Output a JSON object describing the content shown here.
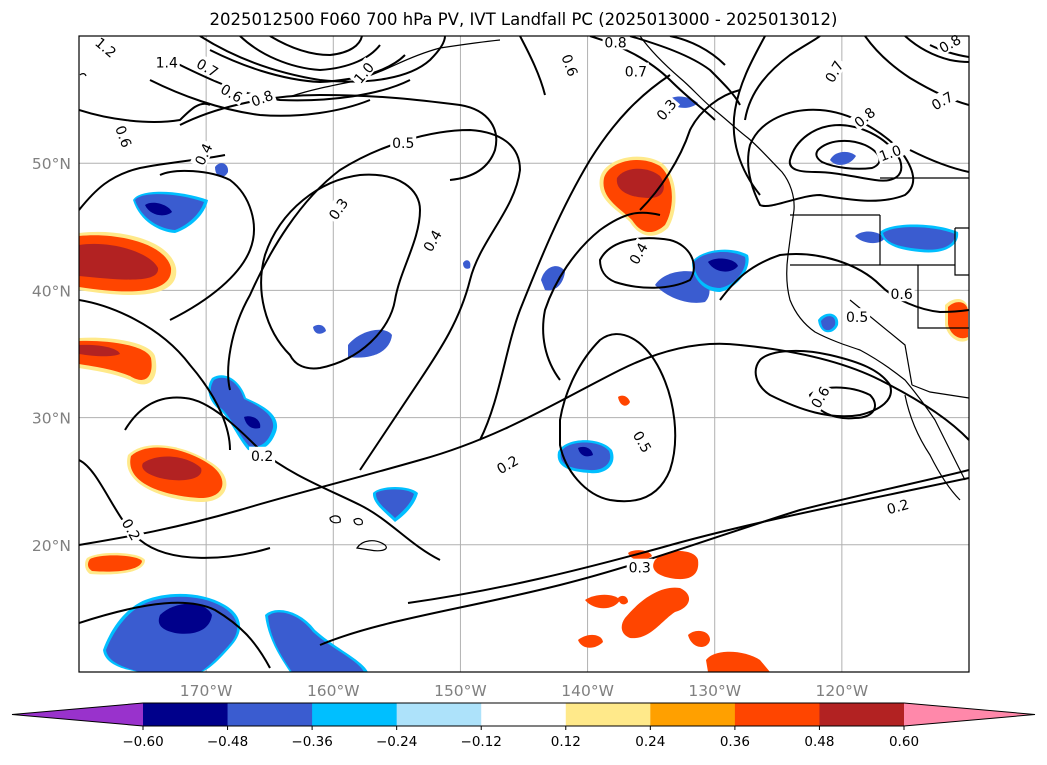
{
  "title": "2025012500 F060 700 hPa PV, IVT Landfall PC (2025013000 - 2025013012)",
  "map": {
    "extent_lon": [
      -180,
      -110
    ],
    "extent_lat": [
      10,
      60
    ],
    "lat_ticks": [
      {
        "value": 50,
        "label": "50°N"
      },
      {
        "value": 40,
        "label": "40°N"
      },
      {
        "value": 30,
        "label": "30°N"
      },
      {
        "value": 20,
        "label": "20°N"
      }
    ],
    "lon_ticks": [
      {
        "value": -170,
        "label": "170°W"
      },
      {
        "value": -160,
        "label": "160°W"
      },
      {
        "value": -150,
        "label": "150°W"
      },
      {
        "value": -140,
        "label": "140°W"
      },
      {
        "value": -130,
        "label": "130°W"
      },
      {
        "value": -120,
        "label": "120°W"
      }
    ],
    "gridlines": true,
    "contour_color": "#000000",
    "contour_labels": [
      {
        "text": "1.2",
        "lon": -177.9,
        "lat": 59.1,
        "rot": 40
      },
      {
        "text": "1.4",
        "lon": -173.1,
        "lat": 57.9,
        "rot": 0
      },
      {
        "text": "0.7",
        "lon": -169.9,
        "lat": 57.5,
        "rot": 30
      },
      {
        "text": "0.6",
        "lon": -168.0,
        "lat": 55.5,
        "rot": 30
      },
      {
        "text": "0.8",
        "lon": -165.6,
        "lat": 55.1,
        "rot": -20
      },
      {
        "text": "1.0",
        "lon": -157.6,
        "lat": 57.1,
        "rot": -50
      },
      {
        "text": "0.5",
        "lon": -154.5,
        "lat": 51.6,
        "rot": 0
      },
      {
        "text": "0.4",
        "lon": -170.2,
        "lat": 50.7,
        "rot": -65
      },
      {
        "text": "0.6",
        "lon": -176.5,
        "lat": 52.1,
        "rot": 70
      },
      {
        "text": "0.3",
        "lon": -159.6,
        "lat": 46.4,
        "rot": -55
      },
      {
        "text": "0.4",
        "lon": -152.2,
        "lat": 43.9,
        "rot": -60
      },
      {
        "text": "0.6",
        "lon": -141.4,
        "lat": 57.7,
        "rot": 70
      },
      {
        "text": "0.8",
        "lon": -137.8,
        "lat": 59.5,
        "rot": 0
      },
      {
        "text": "0.7",
        "lon": -136.2,
        "lat": 57.2,
        "rot": 0
      },
      {
        "text": "0.3",
        "lon": -133.8,
        "lat": 54.2,
        "rot": -50
      },
      {
        "text": "0.4",
        "lon": -136.0,
        "lat": 42.9,
        "rot": -60
      },
      {
        "text": "0.7",
        "lon": -120.6,
        "lat": 57.2,
        "rot": -60
      },
      {
        "text": "0.8",
        "lon": -118.2,
        "lat": 53.6,
        "rot": -40
      },
      {
        "text": "1.0",
        "lon": -116.2,
        "lat": 50.8,
        "rot": -20
      },
      {
        "text": "0.7",
        "lon": -112.1,
        "lat": 54.9,
        "rot": -30
      },
      {
        "text": "0.8",
        "lon": -111.5,
        "lat": 59.4,
        "rot": -30
      },
      {
        "text": "0.6",
        "lon": -115.3,
        "lat": 39.7,
        "rot": 0
      },
      {
        "text": "0.5",
        "lon": -118.8,
        "lat": 37.9,
        "rot": 0
      },
      {
        "text": "0.6",
        "lon": -121.7,
        "lat": 31.6,
        "rot": -60
      },
      {
        "text": "0.5",
        "lon": -135.7,
        "lat": 28.1,
        "rot": 60
      },
      {
        "text": "0.2",
        "lon": -165.6,
        "lat": 27.0,
        "rot": 0
      },
      {
        "text": "0.2",
        "lon": -175.9,
        "lat": 21.2,
        "rot": 60
      },
      {
        "text": "0.2",
        "lon": -146.3,
        "lat": 26.3,
        "rot": -30
      },
      {
        "text": "0.3",
        "lon": -135.9,
        "lat": 18.2,
        "rot": 0
      },
      {
        "text": "0.2",
        "lon": -115.6,
        "lat": 23.0,
        "rot": -15
      }
    ]
  },
  "colorbar": {
    "colors": [
      "#9932CC",
      "#00008B",
      "#3A5CD0",
      "#00BFFF",
      "#ADE2FA",
      "#FFFFFF",
      "#FFE98A",
      "#FFA000",
      "#FF4500",
      "#B22222",
      "#FF88AA"
    ],
    "tick_labels": [
      "−0.60",
      "−0.48",
      "−0.36",
      "−0.24",
      "−0.12",
      "0.12",
      "0.24",
      "0.36",
      "0.48",
      "0.60"
    ]
  }
}
